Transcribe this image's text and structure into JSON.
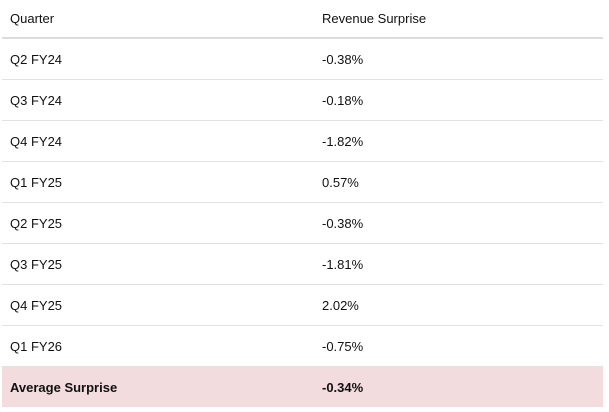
{
  "table": {
    "headers": [
      "Quarter",
      "Revenue Surprise"
    ],
    "rows": [
      [
        "Q2 FY24",
        "-0.38%"
      ],
      [
        "Q3 FY24",
        "-0.18%"
      ],
      [
        "Q4 FY24",
        "-1.82%"
      ],
      [
        "Q1 FY25",
        "0.57%"
      ],
      [
        "Q2 FY25",
        "-0.38%"
      ],
      [
        "Q3 FY25",
        "-1.81%"
      ],
      [
        "Q4 FY25",
        "2.02%"
      ],
      [
        "Q1 FY26",
        "-0.75%"
      ]
    ],
    "summary": [
      "Average Surprise",
      "-0.34%"
    ]
  },
  "colors": {
    "summary_bg": "#f2dcdd",
    "border": "#dcdcdc"
  }
}
